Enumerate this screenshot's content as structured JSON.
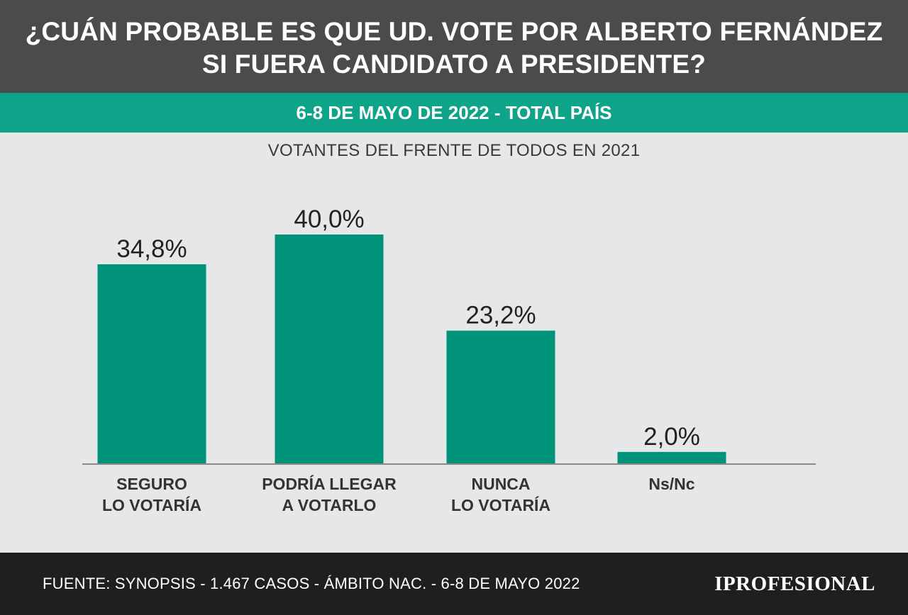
{
  "header": {
    "title_line1": "¿CUÁN PROBABLE ES QUE UD. VOTE POR ALBERTO FERNÁNDEZ",
    "title_line2": "SI FUERA CANDIDATO A PRESIDENTE?"
  },
  "band": {
    "text": "6-8 DE MAYO DE 2022 - TOTAL PAÍS"
  },
  "subtitle": "VOTANTES DEL FRENTE DE TODOS EN 2021",
  "chart_data": {
    "type": "bar",
    "title": "¿CUÁN PROBABLE ES QUE UD. VOTE POR ALBERTO FERNÁNDEZ SI FUERA CANDIDATO A PRESIDENTE?",
    "subtitle": "VOTANTES DEL FRENTE DE TODOS EN 2021",
    "categories": [
      [
        "SEGURO",
        "LO VOTARÍA"
      ],
      [
        "PODRÍA LLEGAR",
        "A VOTARLO"
      ],
      [
        "NUNCA",
        "LO VOTARÍA"
      ],
      [
        "Ns/Nc"
      ]
    ],
    "values": [
      34.8,
      40.0,
      23.2,
      2.0
    ],
    "value_labels": [
      "34,8%",
      "40,0%",
      "23,2%",
      "2,0%"
    ],
    "ylim": [
      0,
      40
    ],
    "grid": false,
    "bar_color": "#00937a",
    "baseline_color": "#8a8a8a"
  },
  "footer": {
    "source": "FUENTE: SYNOPSIS - 1.467 CASOS - ÁMBITO NAC. - 6-8 DE MAYO 2022",
    "logo": "IPROFESIONAL"
  },
  "colors": {
    "header_bg": "#4b4b4b",
    "band_bg": "#0ea48a",
    "page_bg": "#e6e7e9",
    "footer_bg": "#1f1f1f"
  }
}
